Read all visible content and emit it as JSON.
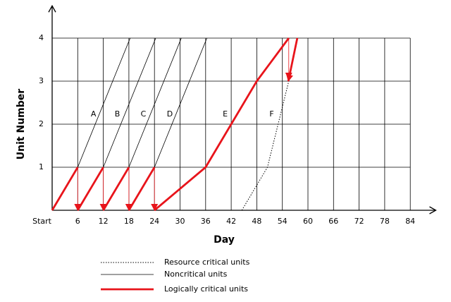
{
  "chart_data": {
    "type": "line",
    "x_label": "Day",
    "y_label": "Unit Number",
    "xlim": [
      0,
      90
    ],
    "ylim": [
      0,
      4.75
    ],
    "xticks": [
      {
        "value": 0,
        "label": "Start"
      },
      6,
      12,
      18,
      24,
      30,
      36,
      42,
      48,
      54,
      60,
      66,
      72,
      78,
      84
    ],
    "yticks": [
      1,
      2,
      3,
      4
    ],
    "grid": true,
    "series": [
      {
        "name": "Resource critical units",
        "color": "#000000",
        "style": "dotted",
        "x": [
          44.5,
          50.5,
          55.5
        ],
        "y": [
          0,
          1,
          3
        ]
      },
      {
        "name": "Noncritical units",
        "color": "#000000",
        "style": "solid",
        "x": [
          6,
          18.3,
          null,
          12,
          24.3,
          null,
          18,
          30.3,
          null,
          24,
          36.3
        ],
        "y": [
          1,
          4,
          null,
          1,
          4,
          null,
          1,
          4,
          null,
          1,
          4
        ]
      },
      {
        "name": "Logically critical units",
        "color": "#e8141b",
        "style": "bold",
        "x": [
          0,
          6,
          null,
          6,
          12,
          null,
          12,
          18,
          null,
          18,
          24,
          null,
          24,
          36,
          48,
          55.5
        ],
        "y": [
          0,
          1,
          null,
          0,
          1,
          null,
          0,
          1,
          null,
          0,
          1,
          null,
          0,
          1,
          3,
          4
        ]
      }
    ],
    "critical_links": [
      {
        "x": [
          6,
          6
        ],
        "y": [
          1,
          0
        ],
        "style": "solid"
      },
      {
        "x": [
          12,
          12
        ],
        "y": [
          1,
          0
        ],
        "style": "solid"
      },
      {
        "x": [
          18,
          18
        ],
        "y": [
          1,
          0
        ],
        "style": "solid"
      },
      {
        "x": [
          24,
          24
        ],
        "y": [
          1,
          0
        ],
        "style": "solid"
      },
      {
        "x": [
          55.5,
          55.5
        ],
        "y": [
          4,
          3.05
        ],
        "style": "solid"
      },
      {
        "x": [
          57.5,
          55.4
        ],
        "y": [
          4,
          3
        ],
        "style": "bold"
      }
    ],
    "annotations": [
      {
        "text": "A",
        "x": 9.7,
        "y": 2.23
      },
      {
        "text": "B",
        "x": 15.3,
        "y": 2.23
      },
      {
        "text": "C",
        "x": 21.4,
        "y": 2.23
      },
      {
        "text": "D",
        "x": 27.6,
        "y": 2.23
      },
      {
        "text": "E",
        "x": 40.6,
        "y": 2.23
      },
      {
        "text": "F",
        "x": 51.5,
        "y": 2.23
      }
    ]
  }
}
